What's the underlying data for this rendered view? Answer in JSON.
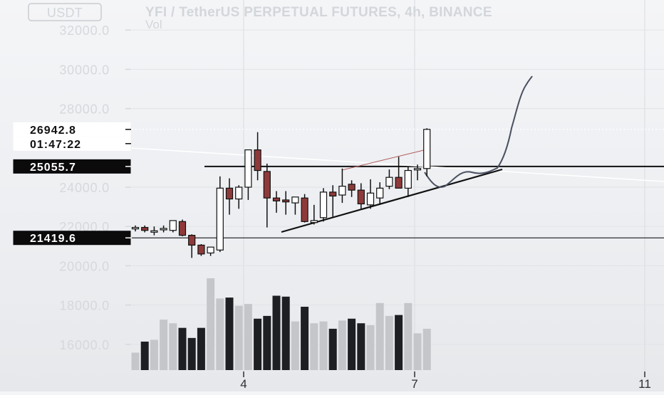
{
  "header": {
    "currency_button": "USDT",
    "title": "YFI / TetherUS PERPETUAL FUTURES, 4h, BINANCE",
    "volume_label": "Vol"
  },
  "price_tags": {
    "current_price": "26942.8",
    "countdown": "01:47:22",
    "level_upper": "25055.7",
    "level_lower": "21419.6"
  },
  "colors": {
    "bull_fill": "#ffffff",
    "bear_fill": "#8f3a3a",
    "wick": "#111111",
    "trendline": "#111111",
    "projection": "#4a5060",
    "volume_dark": "#1e1f22",
    "volume_light": "#c4c6ca"
  },
  "chart_data": {
    "type": "candlestick",
    "title": "YFI / TetherUS PERPETUAL FUTURES, 4h, BINANCE",
    "yaxis": {
      "ticks": [
        "32000.0",
        "30000.0",
        "28000.0",
        "24000.0",
        "22000.0",
        "20000.0",
        "18000.0",
        "16000.0"
      ],
      "range": [
        14800,
        32500
      ]
    },
    "xaxis": {
      "ticks": [
        "4",
        "7",
        "11"
      ]
    },
    "grid": true,
    "candles": [
      {
        "o": 21900,
        "h": 22050,
        "l": 21750,
        "c": 21950
      },
      {
        "o": 21950,
        "h": 22050,
        "l": 21700,
        "c": 21800
      },
      {
        "o": 21750,
        "h": 22000,
        "l": 21550,
        "c": 21780
      },
      {
        "o": 21850,
        "h": 22050,
        "l": 21700,
        "c": 21900
      },
      {
        "o": 21800,
        "h": 22300,
        "l": 21700,
        "c": 22300
      },
      {
        "o": 22250,
        "h": 22350,
        "l": 21500,
        "c": 21550
      },
      {
        "o": 21550,
        "h": 21600,
        "l": 20400,
        "c": 21050
      },
      {
        "o": 21050,
        "h": 21100,
        "l": 20500,
        "c": 20600
      },
      {
        "o": 20650,
        "h": 20900,
        "l": 20500,
        "c": 20950
      },
      {
        "o": 20800,
        "h": 24550,
        "l": 20700,
        "c": 23950
      },
      {
        "o": 23950,
        "h": 24450,
        "l": 22600,
        "c": 23400
      },
      {
        "o": 23400,
        "h": 24100,
        "l": 22900,
        "c": 24000
      },
      {
        "o": 24000,
        "h": 25800,
        "l": 23350,
        "c": 25900
      },
      {
        "o": 25900,
        "h": 26800,
        "l": 24350,
        "c": 24850
      },
      {
        "o": 24800,
        "h": 25200,
        "l": 21950,
        "c": 23450
      },
      {
        "o": 23450,
        "h": 23800,
        "l": 22700,
        "c": 23300
      },
      {
        "o": 23350,
        "h": 23800,
        "l": 22600,
        "c": 23250
      },
      {
        "o": 23200,
        "h": 23350,
        "l": 22600,
        "c": 23500
      },
      {
        "o": 23450,
        "h": 23650,
        "l": 22200,
        "c": 22250
      },
      {
        "o": 22200,
        "h": 23100,
        "l": 22100,
        "c": 22300
      },
      {
        "o": 22450,
        "h": 23950,
        "l": 22250,
        "c": 23750
      },
      {
        "o": 23750,
        "h": 24100,
        "l": 22500,
        "c": 23550
      },
      {
        "o": 23600,
        "h": 24950,
        "l": 23200,
        "c": 24050
      },
      {
        "o": 24150,
        "h": 24350,
        "l": 23500,
        "c": 23850
      },
      {
        "o": 23850,
        "h": 24200,
        "l": 22850,
        "c": 23150
      },
      {
        "o": 23100,
        "h": 24400,
        "l": 22900,
        "c": 23700
      },
      {
        "o": 23450,
        "h": 24250,
        "l": 23100,
        "c": 23950
      },
      {
        "o": 24050,
        "h": 24900,
        "l": 23900,
        "c": 24500
      },
      {
        "o": 24500,
        "h": 25550,
        "l": 24000,
        "c": 23950
      },
      {
        "o": 23950,
        "h": 25050,
        "l": 23500,
        "c": 24850
      },
      {
        "o": 24950,
        "h": 25150,
        "l": 24350,
        "c": 24950
      },
      {
        "o": 24950,
        "h": 27000,
        "l": 24550,
        "c": 26942.8
      }
    ],
    "volume_relative": [
      0.19,
      0.31,
      0.33,
      0.55,
      0.51,
      0.46,
      0.35,
      0.46,
      1.0,
      0.78,
      0.79,
      0.7,
      0.72,
      0.56,
      0.59,
      0.81,
      0.8,
      0.53,
      0.69,
      0.51,
      0.53,
      0.45,
      0.54,
      0.56,
      0.51,
      0.49,
      0.73,
      0.59,
      0.6,
      0.73,
      0.4,
      0.45
    ]
  }
}
